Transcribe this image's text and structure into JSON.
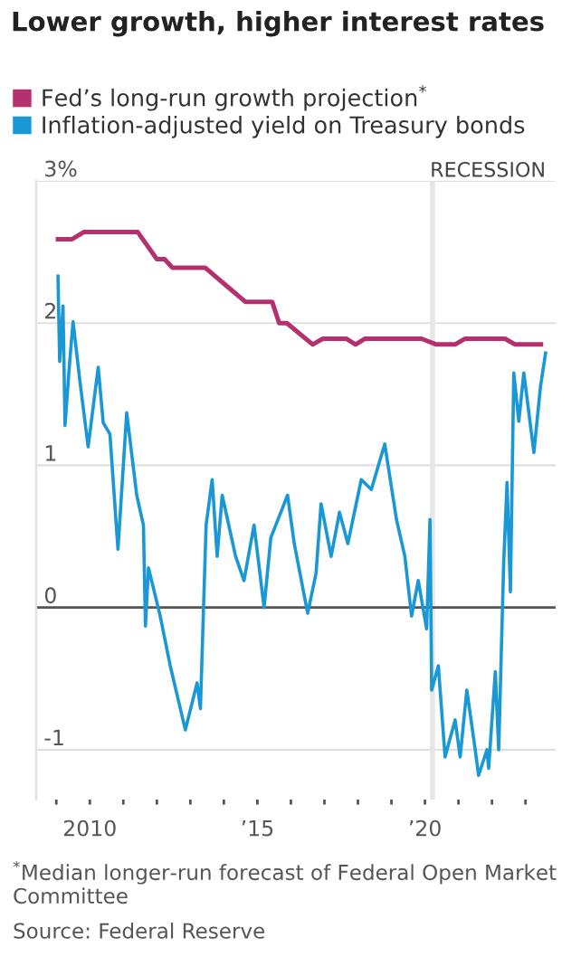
{
  "chart_data": {
    "type": "line",
    "title": "Lower growth, higher interest rates",
    "xlim": [
      2008.4,
      2023.9
    ],
    "ylim": [
      -1.35,
      3
    ],
    "xticks": [
      {
        "value": 2009,
        "label": null
      },
      {
        "value": 2010,
        "label": "2010"
      },
      {
        "value": 2011,
        "label": null
      },
      {
        "value": 2012,
        "label": null
      },
      {
        "value": 2013,
        "label": null
      },
      {
        "value": 2014,
        "label": null
      },
      {
        "value": 2015,
        "label": "’15"
      },
      {
        "value": 2016,
        "label": null
      },
      {
        "value": 2017,
        "label": null
      },
      {
        "value": 2018,
        "label": null
      },
      {
        "value": 2019,
        "label": null
      },
      {
        "value": 2020,
        "label": "’20"
      },
      {
        "value": 2021,
        "label": null
      },
      {
        "value": 2022,
        "label": null
      },
      {
        "value": 2023,
        "label": null
      }
    ],
    "yticks": [
      {
        "value": 3,
        "label": "3%"
      },
      2,
      1,
      0,
      -1
    ],
    "grid": "y",
    "legend": "top",
    "marker": "none",
    "line_style": "solid",
    "series": [
      {
        "name": "Fed’s long-run growth projection$^{*}$",
        "color": "#b5306e",
        "x": [
          2009.05,
          2009.47,
          2009.82,
          2011.43,
          2012.0,
          2012.23,
          2012.46,
          2013.44,
          2014.64,
          2015.44,
          2015.65,
          2015.88,
          2016.65,
          2016.95,
          2017.66,
          2017.93,
          2018.2,
          2019.9,
          2020.34,
          2020.9,
          2021.19,
          2022.39,
          2022.69,
          2023.46
        ],
        "values": [
          2.59,
          2.59,
          2.64,
          2.64,
          2.45,
          2.45,
          2.39,
          2.39,
          2.15,
          2.15,
          2.0,
          2.0,
          1.85,
          1.89,
          1.89,
          1.85,
          1.89,
          1.89,
          1.85,
          1.85,
          1.89,
          1.89,
          1.85,
          1.85
        ]
      },
      {
        "name": "Inflation-adjusted yield on Treasury bonds",
        "color": "#1a98d5",
        "x": [
          2009.05,
          2009.1,
          2009.2,
          2009.26,
          2009.4,
          2009.5,
          2009.7,
          2009.95,
          2010.25,
          2010.4,
          2010.6,
          2010.84,
          2011.1,
          2011.4,
          2011.6,
          2011.66,
          2011.75,
          2012.1,
          2012.4,
          2012.85,
          2013.2,
          2013.3,
          2013.47,
          2013.65,
          2013.8,
          2013.95,
          2014.35,
          2014.6,
          2014.9,
          2015.2,
          2015.4,
          2015.9,
          2016.1,
          2016.5,
          2016.75,
          2016.9,
          2017.2,
          2017.45,
          2017.7,
          2018.1,
          2018.4,
          2018.8,
          2019.15,
          2019.4,
          2019.6,
          2019.8,
          2020.05,
          2020.15,
          2020.2,
          2020.4,
          2020.6,
          2020.9,
          2021.05,
          2021.25,
          2021.5,
          2021.6,
          2021.85,
          2021.9,
          2022.1,
          2022.2,
          2022.35,
          2022.45,
          2022.55,
          2022.65,
          2022.8,
          2022.95,
          2023.25,
          2023.45,
          2023.6
        ],
        "values": [
          2.33,
          1.73,
          2.12,
          1.28,
          1.73,
          2.01,
          1.6,
          1.13,
          1.69,
          1.3,
          1.22,
          0.41,
          1.37,
          0.79,
          0.58,
          -0.13,
          0.28,
          -0.06,
          -0.41,
          -0.86,
          -0.53,
          -0.71,
          0.58,
          0.9,
          0.36,
          0.79,
          0.36,
          0.19,
          0.58,
          0.0,
          0.49,
          0.79,
          0.45,
          -0.04,
          0.24,
          0.73,
          0.36,
          0.67,
          0.45,
          0.9,
          0.83,
          1.15,
          0.62,
          0.36,
          -0.06,
          0.19,
          -0.15,
          0.62,
          -0.58,
          -0.41,
          -1.05,
          -0.79,
          -1.05,
          -0.58,
          -1.0,
          -1.18,
          -1.0,
          -1.13,
          -0.45,
          -1.0,
          0.32,
          0.88,
          0.11,
          1.65,
          1.31,
          1.65,
          1.09,
          1.56,
          1.79
        ]
      }
    ],
    "ref_lines": [
      {
        "axis": "y",
        "value": 0,
        "color": "#555555"
      }
    ],
    "bands": [
      {
        "axis": "x",
        "from": 2020.15,
        "to": 2020.3,
        "label": "RECESSION",
        "color": "#e6e6e6"
      }
    ],
    "annotations": [
      "$^{*}$Median longer-run forecast of Federal Open Market Committee",
      "Source: Federal Reserve"
    ]
  }
}
